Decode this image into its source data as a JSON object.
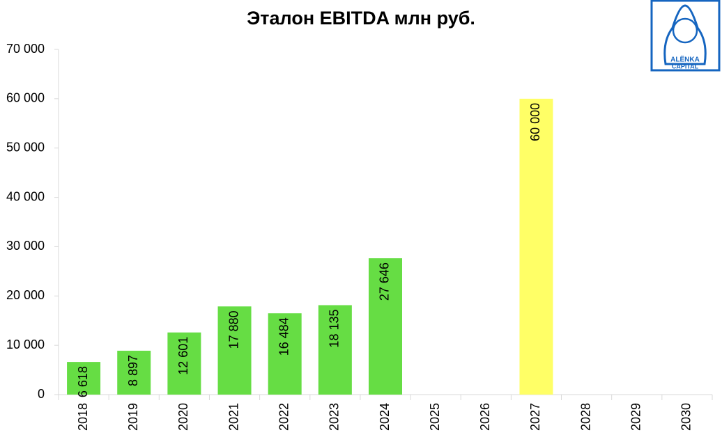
{
  "chart_data": {
    "type": "bar",
    "title": "Эталон EBITDA млн руб.",
    "categories": [
      "2018",
      "2019",
      "2020",
      "2021",
      "2022",
      "2023",
      "2024",
      "2025",
      "2026",
      "2027",
      "2028",
      "2029",
      "2030"
    ],
    "values": [
      6618,
      8897,
      12601,
      17880,
      16484,
      18135,
      27646,
      null,
      null,
      60000,
      null,
      null,
      null
    ],
    "value_labels": [
      "6 618",
      "8 897",
      "12 601",
      "17 880",
      "16 484",
      "18 135",
      "27 646",
      null,
      null,
      "60 000",
      null,
      null,
      null
    ],
    "colors": [
      "#66dd44",
      "#66dd44",
      "#66dd44",
      "#66dd44",
      "#66dd44",
      "#66dd44",
      "#66dd44",
      "#66dd44",
      "#66dd44",
      "#ffff66",
      "#66dd44",
      "#66dd44",
      "#66dd44"
    ],
    "ylim": [
      0,
      70000
    ],
    "yticks": [
      0,
      {
        "value": 10000,
        "label": "10 000"
      },
      {
        "value": 20000,
        "label": "20 000"
      },
      {
        "value": 30000,
        "label": "30 000"
      },
      {
        "value": 40000,
        "label": "40 000"
      },
      {
        "value": 50000,
        "label": "50 000"
      },
      {
        "value": 60000,
        "label": "60 000"
      },
      {
        "value": 70000,
        "label": "70 000"
      }
    ],
    "grid": false
  },
  "logo": [
    "ALËNKA",
    "CAPITAL"
  ]
}
